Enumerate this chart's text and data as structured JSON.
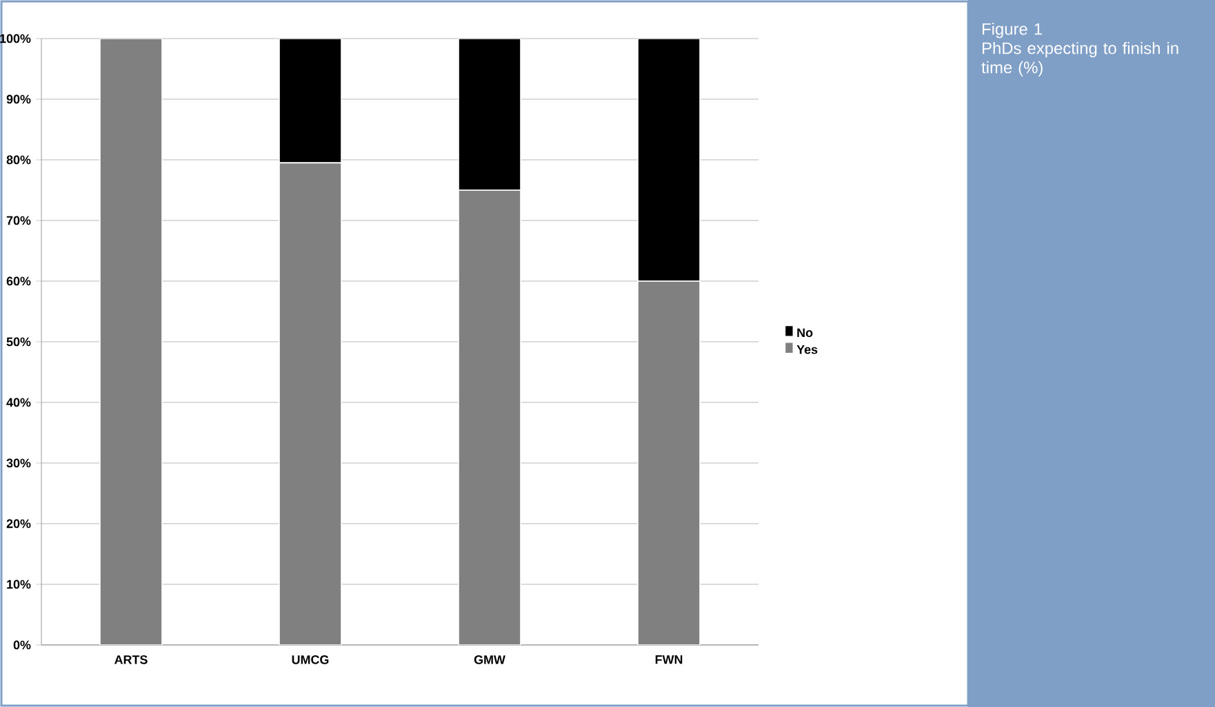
{
  "chart_data": {
    "type": "bar",
    "stacked": true,
    "title": "Figure 1",
    "subtitle": "PhDs expecting to finish in time (%)",
    "categories": [
      "ARTS",
      "UMCG",
      "GMW",
      "FWN"
    ],
    "series": [
      {
        "name": "Yes",
        "color": "#808080",
        "values": [
          100,
          79.5,
          75,
          60
        ]
      },
      {
        "name": "No",
        "color": "#000000",
        "values": [
          0,
          20.5,
          25,
          40
        ]
      }
    ],
    "ylim": [
      0,
      100
    ],
    "yticks": [
      {
        "value": 0,
        "label": "0%"
      },
      {
        "value": 10,
        "label": "10%"
      },
      {
        "value": 20,
        "label": "20%"
      },
      {
        "value": 30,
        "label": "30%"
      },
      {
        "value": 40,
        "label": "40%"
      },
      {
        "value": 50,
        "label": "50%"
      },
      {
        "value": 60,
        "label": "60%"
      },
      {
        "value": 70,
        "label": "70%"
      },
      {
        "value": 80,
        "label": "80%"
      },
      {
        "value": 90,
        "label": "90%"
      },
      {
        "value": 100,
        "label": "100%"
      }
    ],
    "grid": "y",
    "legend": "right"
  }
}
